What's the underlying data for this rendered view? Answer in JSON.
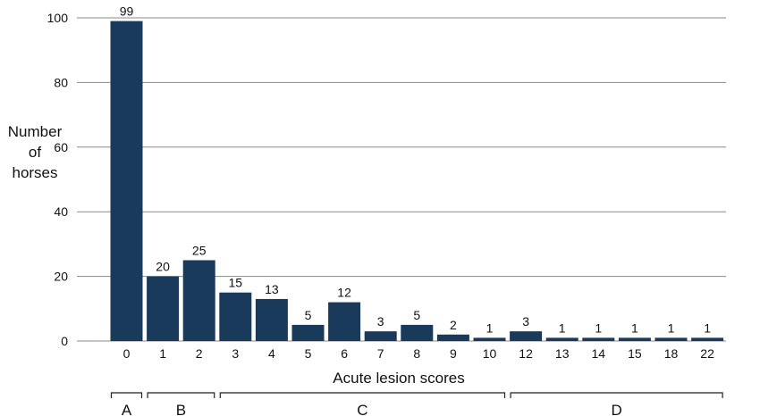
{
  "chart_data": {
    "type": "bar",
    "categories": [
      "0",
      "1",
      "2",
      "3",
      "4",
      "5",
      "6",
      "7",
      "8",
      "9",
      "10",
      "12",
      "13",
      "14",
      "15",
      "18",
      "22"
    ],
    "values": [
      99,
      20,
      25,
      15,
      13,
      5,
      12,
      3,
      5,
      2,
      1,
      3,
      1,
      1,
      1,
      1,
      1
    ],
    "data_labels": [
      "99",
      "20",
      "25",
      "15",
      "13",
      "5",
      "12",
      "3",
      "5",
      "2",
      "1",
      "3",
      "1",
      "1",
      "1",
      "1",
      "1"
    ],
    "xlabel": "Acute lesion scores",
    "ylabel_lines": [
      "Number",
      "of",
      "horses"
    ],
    "ylim": [
      0,
      100
    ],
    "yticks": [
      0,
      20,
      40,
      60,
      80,
      100
    ],
    "grid": true,
    "bar_color": "#1a3a5c",
    "groups": [
      {
        "label": "A",
        "from": "0",
        "to": "0"
      },
      {
        "label": "B",
        "from": "1",
        "to": "2"
      },
      {
        "label": "C",
        "from": "3",
        "to": "10"
      },
      {
        "label": "D",
        "from": "12",
        "to": "22"
      }
    ]
  }
}
